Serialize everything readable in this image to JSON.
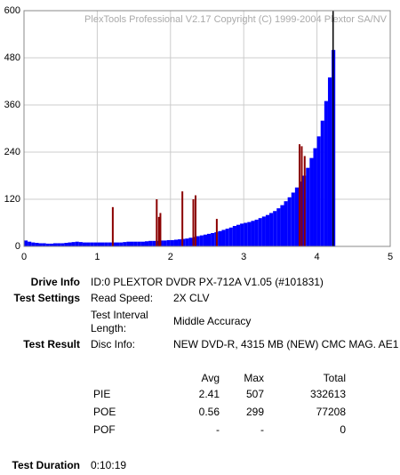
{
  "chart_data": {
    "type": "bar",
    "title": "PlexTools Professional V2.17 Copyright (C) 1999-2004 Plextor SA/NV",
    "xlim": [
      0,
      5
    ],
    "xticks": [
      0,
      1,
      2,
      3,
      4,
      5
    ],
    "ylim": [
      0,
      600
    ],
    "yticks": [
      0,
      120,
      240,
      360,
      480,
      600
    ],
    "grid": true,
    "marker_x": 4.22,
    "series": [
      {
        "color": "#0000ff",
        "x": [
          0,
          0.05,
          0.1,
          0.15,
          0.2,
          0.25,
          0.3,
          0.35,
          0.4,
          0.45,
          0.5,
          0.55,
          0.6,
          0.65,
          0.7,
          0.75,
          0.8,
          0.85,
          0.9,
          0.95,
          1.0,
          1.05,
          1.1,
          1.15,
          1.2,
          1.25,
          1.3,
          1.35,
          1.4,
          1.45,
          1.5,
          1.55,
          1.6,
          1.65,
          1.7,
          1.75,
          1.8,
          1.85,
          1.9,
          1.95,
          2.0,
          2.05,
          2.1,
          2.15,
          2.2,
          2.25,
          2.3,
          2.35,
          2.4,
          2.45,
          2.5,
          2.55,
          2.6,
          2.65,
          2.7,
          2.75,
          2.8,
          2.85,
          2.9,
          2.95,
          3.0,
          3.05,
          3.1,
          3.15,
          3.2,
          3.25,
          3.3,
          3.35,
          3.4,
          3.45,
          3.5,
          3.55,
          3.6,
          3.65,
          3.7,
          3.75,
          3.8,
          3.85,
          3.9,
          3.95,
          4.0,
          4.05,
          4.1,
          4.15,
          4.2
        ],
        "values": [
          15,
          12,
          10,
          9,
          8,
          8,
          7,
          7,
          8,
          8,
          8,
          9,
          10,
          11,
          12,
          11,
          10,
          10,
          10,
          10,
          10,
          10,
          10,
          10,
          10,
          10,
          10,
          11,
          12,
          12,
          12,
          12,
          12,
          13,
          14,
          14,
          14,
          15,
          15,
          16,
          16,
          17,
          18,
          19,
          20,
          22,
          24,
          26,
          28,
          30,
          32,
          34,
          36,
          39,
          42,
          45,
          48,
          52,
          55,
          58,
          60,
          62,
          65,
          68,
          72,
          76,
          80,
          85,
          90,
          97,
          105,
          115,
          125,
          137,
          150,
          165,
          180,
          200,
          225,
          250,
          280,
          320,
          370,
          430,
          500
        ]
      },
      {
        "color": "#8b0000",
        "x": [
          1.2,
          1.8,
          1.83,
          1.85,
          2.15,
          2.3,
          2.33,
          2.62,
          3.75,
          3.78,
          3.82
        ],
        "values": [
          100,
          120,
          75,
          85,
          140,
          120,
          130,
          70,
          260,
          255,
          230
        ]
      }
    ]
  },
  "info": {
    "drive_info": {
      "label": "Drive Info",
      "value": "ID:0 PLEXTOR DVDR PX-712A V1.05 (#101831)"
    },
    "test_settings": {
      "label": "Test Settings",
      "rows": [
        [
          "Read Speed:",
          "2X CLV"
        ],
        [
          "Test Interval Length:",
          "Middle Accuracy"
        ]
      ]
    },
    "test_result": {
      "label": "Test Result",
      "rows": [
        [
          "Disc Info:",
          "NEW DVD-R, 4315 MB (NEW) CMC MAG. AE1"
        ]
      ]
    },
    "table": {
      "header": [
        "Avg",
        "Max",
        "Total"
      ],
      "rows": [
        [
          "PIE",
          "2.41",
          "507",
          "332613"
        ],
        [
          "POE",
          "0.56",
          "299",
          "77208"
        ],
        [
          "POF",
          "-",
          "-",
          "0"
        ]
      ]
    },
    "duration": {
      "label": "Test Duration",
      "value": "0:10:19"
    }
  }
}
